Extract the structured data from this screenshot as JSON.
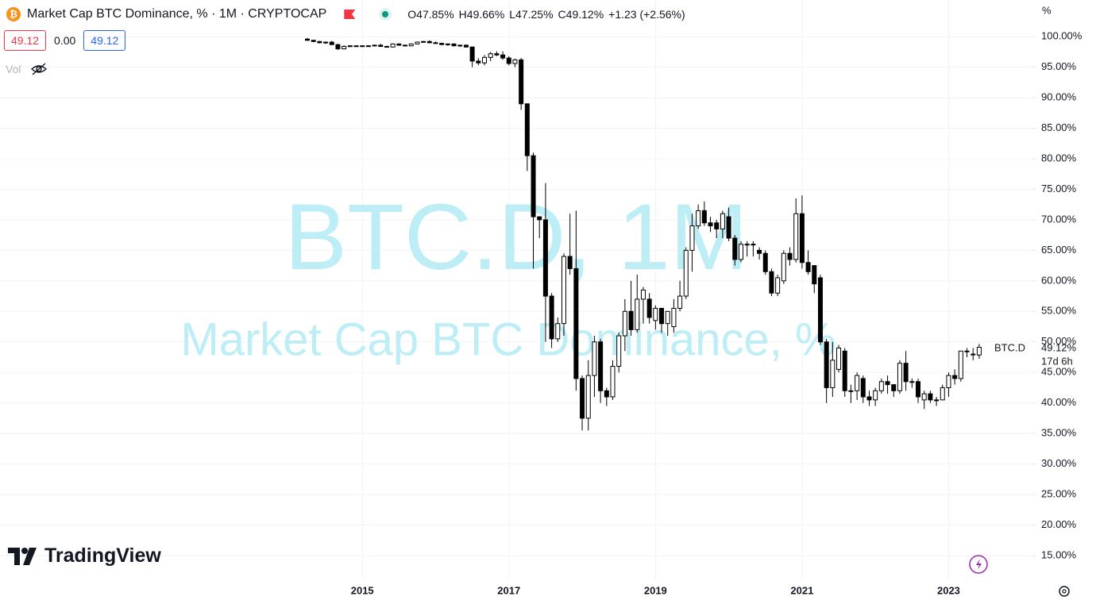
{
  "chart_data": {
    "type": "candlestick",
    "title": "Market Cap BTC Dominance, % · 1M · CRYPTOCAP",
    "symbol": "BTC.D",
    "watermark": [
      "BTC.D, 1M",
      "Market Cap BTC Dominance, %"
    ],
    "legend_values": [
      "O47.85%",
      "H49.66%",
      "L47.25%",
      "C49.12%",
      "+1.23 (+2.56%)"
    ],
    "inputs": [
      "49.12",
      "0.00",
      "49.12"
    ],
    "volume_label": "Vol",
    "unit_label": "%",
    "last_price_label": "49.12%",
    "countdown": "17d 6h",
    "brand": "TradingView",
    "up_color": "#ffffff",
    "down_color": "#000000",
    "grid": true,
    "ylim": [
      11.1,
      106
    ],
    "yticks": [
      {
        "value": 15,
        "label": "15.00%"
      },
      {
        "value": 20,
        "label": "20.00%"
      },
      {
        "value": 25,
        "label": "25.00%"
      },
      {
        "value": 30,
        "label": "30.00%"
      },
      {
        "value": 35,
        "label": "35.00%"
      },
      {
        "value": 40,
        "label": "40.00%"
      },
      {
        "value": 45,
        "label": "45.00%"
      },
      {
        "value": 50,
        "label": "50.00%"
      },
      {
        "value": 55,
        "label": "55.00%"
      },
      {
        "value": 60,
        "label": "60.00%"
      },
      {
        "value": 65,
        "label": "65.00%"
      },
      {
        "value": 70,
        "label": "70.00%"
      },
      {
        "value": 75,
        "label": "75.00%"
      },
      {
        "value": 80,
        "label": "80.00%"
      },
      {
        "value": 85,
        "label": "85.00%"
      },
      {
        "value": 90,
        "label": "90.00%"
      },
      {
        "value": 95,
        "label": "95.00%"
      },
      {
        "value": 100,
        "label": "100.00%"
      }
    ],
    "categories": [
      null,
      null,
      null,
      null,
      null,
      null,
      null,
      null,
      null,
      "2015",
      null,
      null,
      null,
      null,
      null,
      null,
      null,
      null,
      null,
      null,
      null,
      null,
      null,
      null,
      null,
      null,
      null,
      null,
      null,
      null,
      null,
      null,
      null,
      "2017",
      null,
      null,
      null,
      null,
      null,
      null,
      null,
      null,
      null,
      null,
      null,
      null,
      null,
      null,
      null,
      null,
      null,
      null,
      null,
      null,
      null,
      null,
      null,
      "2019",
      null,
      null,
      null,
      null,
      null,
      null,
      null,
      null,
      null,
      null,
      null,
      null,
      null,
      null,
      null,
      null,
      null,
      null,
      null,
      null,
      null,
      null,
      null,
      "2021",
      null,
      null,
      null,
      null,
      null,
      null,
      null,
      null,
      null,
      null,
      null,
      null,
      null,
      null,
      null,
      null,
      null,
      null,
      null,
      null,
      null,
      null,
      null,
      "2023",
      null,
      null,
      null,
      null,
      null
    ],
    "open": [
      99.6,
      99.4,
      99.2,
      99.0,
      99.1,
      98.7,
      98.0,
      98.4,
      98.5,
      98.4,
      98.5,
      98.5,
      98.6,
      98.4,
      98.3,
      98.8,
      98.6,
      98.5,
      98.8,
      99.1,
      99.2,
      99.0,
      98.9,
      98.7,
      98.8,
      98.5,
      98.6,
      98.3,
      96.0,
      95.7,
      96.6,
      97.2,
      97.0,
      96.5,
      95.6,
      96.2,
      89.0,
      80.5,
      70.5,
      70.0,
      57.5,
      50.5,
      53.0,
      64.0,
      62.0,
      44.0,
      37.5,
      44.5,
      50.0,
      42.0,
      41.0,
      46.0,
      51.0,
      55.0,
      52.0,
      57.0,
      57.0,
      53.5,
      55.5,
      53.0,
      52.5,
      55.5,
      57.5,
      65.0,
      69.0,
      71.5,
      69.5,
      69.5,
      68.5,
      70.5,
      67.0,
      63.5,
      66.0,
      66.0,
      65.0,
      64.5,
      61.5,
      58.0,
      60.0,
      64.5,
      63.5,
      71.0,
      63.0,
      62.5,
      60.5,
      50.0,
      42.5,
      45.5,
      48.5,
      42.0,
      42.0,
      44.0,
      41.0,
      40.5,
      42.0,
      43.5,
      43.0,
      42.0,
      46.5,
      43.5,
      43.5,
      40.5,
      41.5,
      40.5,
      40.5,
      42.5,
      44.5,
      44.0,
      48.5,
      48.0,
      47.85
    ],
    "high": [
      99.8,
      99.5,
      99.3,
      99.2,
      99.3,
      98.8,
      98.6,
      98.6,
      98.6,
      98.6,
      98.6,
      98.7,
      98.8,
      98.5,
      98.9,
      98.9,
      98.7,
      98.9,
      99.2,
      99.3,
      99.4,
      99.2,
      99.0,
      98.9,
      98.9,
      98.7,
      98.7,
      98.4,
      96.5,
      97.0,
      97.5,
      97.6,
      97.6,
      96.8,
      96.4,
      96.5,
      89.0,
      81.0,
      70.5,
      76.0,
      58.0,
      54.0,
      64.5,
      71.0,
      71.5,
      44.5,
      47.0,
      51.0,
      50.5,
      42.5,
      47.0,
      51.5,
      57.0,
      60.0,
      61.0,
      59.0,
      58.0,
      56.0,
      55.5,
      55.0,
      57.0,
      60.0,
      65.5,
      71.0,
      72.5,
      73.0,
      70.5,
      70.0,
      71.5,
      72.0,
      67.5,
      66.5,
      66.5,
      66.5,
      65.5,
      65.0,
      62.0,
      61.0,
      65.0,
      65.5,
      73.5,
      74.0,
      65.0,
      62.5,
      61.0,
      50.5,
      50.0,
      49.5,
      49.0,
      43.0,
      45.0,
      44.5,
      42.0,
      42.5,
      44.0,
      44.5,
      43.0,
      47.0,
      48.5,
      44.0,
      44.0,
      42.0,
      42.0,
      41.0,
      43.0,
      45.0,
      45.5,
      48.5,
      49.0,
      49.0,
      49.66
    ],
    "low": [
      99.3,
      99.1,
      98.9,
      98.8,
      98.6,
      97.8,
      97.9,
      98.3,
      98.3,
      98.3,
      98.4,
      98.4,
      98.3,
      98.2,
      98.2,
      98.5,
      98.4,
      98.4,
      98.7,
      99.0,
      98.9,
      98.8,
      98.6,
      98.5,
      98.4,
      98.3,
      98.2,
      95.0,
      95.3,
      95.3,
      96.0,
      96.8,
      96.2,
      95.3,
      95.0,
      88.0,
      78.0,
      62.0,
      67.0,
      50.0,
      49.0,
      50.0,
      51.0,
      61.0,
      42.0,
      35.5,
      35.5,
      41.0,
      40.0,
      39.5,
      40.5,
      45.0,
      48.5,
      51.0,
      51.5,
      53.0,
      53.0,
      52.0,
      51.5,
      51.0,
      51.5,
      55.0,
      57.0,
      61.5,
      68.5,
      69.0,
      68.0,
      67.0,
      67.0,
      66.5,
      62.5,
      63.0,
      64.0,
      64.0,
      63.5,
      61.0,
      57.5,
      57.5,
      59.5,
      62.5,
      63.0,
      62.0,
      61.0,
      58.0,
      49.5,
      40.0,
      41.0,
      45.0,
      41.0,
      40.0,
      40.5,
      40.0,
      39.5,
      39.5,
      41.5,
      41.5,
      41.0,
      41.5,
      42.0,
      42.5,
      40.0,
      39.0,
      40.0,
      39.5,
      40.5,
      41.0,
      43.0,
      43.5,
      47.5,
      47.0,
      47.25
    ],
    "close": [
      99.4,
      99.2,
      99.0,
      99.1,
      98.7,
      98.0,
      98.4,
      98.5,
      98.4,
      98.5,
      98.5,
      98.6,
      98.4,
      98.3,
      98.8,
      98.6,
      98.5,
      98.8,
      99.1,
      99.2,
      99.0,
      98.9,
      98.7,
      98.8,
      98.5,
      98.6,
      98.3,
      96.0,
      95.7,
      96.6,
      97.2,
      97.0,
      96.5,
      95.6,
      96.2,
      89.0,
      80.5,
      70.5,
      70.0,
      57.5,
      50.5,
      53.0,
      64.0,
      62.0,
      44.0,
      37.5,
      44.5,
      50.0,
      42.0,
      41.0,
      46.0,
      51.0,
      55.0,
      52.0,
      57.0,
      58.5,
      54.0,
      55.5,
      53.0,
      55.0,
      55.5,
      57.5,
      65.0,
      69.0,
      71.5,
      69.5,
      69.0,
      68.5,
      71.0,
      67.0,
      63.5,
      66.0,
      66.0,
      66.0,
      64.5,
      61.5,
      58.0,
      60.5,
      64.5,
      63.5,
      71.0,
      63.0,
      61.5,
      59.5,
      50.0,
      42.5,
      47.0,
      49.0,
      42.0,
      42.0,
      44.5,
      41.0,
      40.5,
      42.0,
      43.5,
      43.0,
      42.0,
      46.5,
      43.5,
      43.5,
      41.0,
      41.5,
      40.5,
      40.5,
      42.5,
      44.5,
      44.0,
      48.5,
      48.5,
      48.0,
      49.12
    ]
  }
}
